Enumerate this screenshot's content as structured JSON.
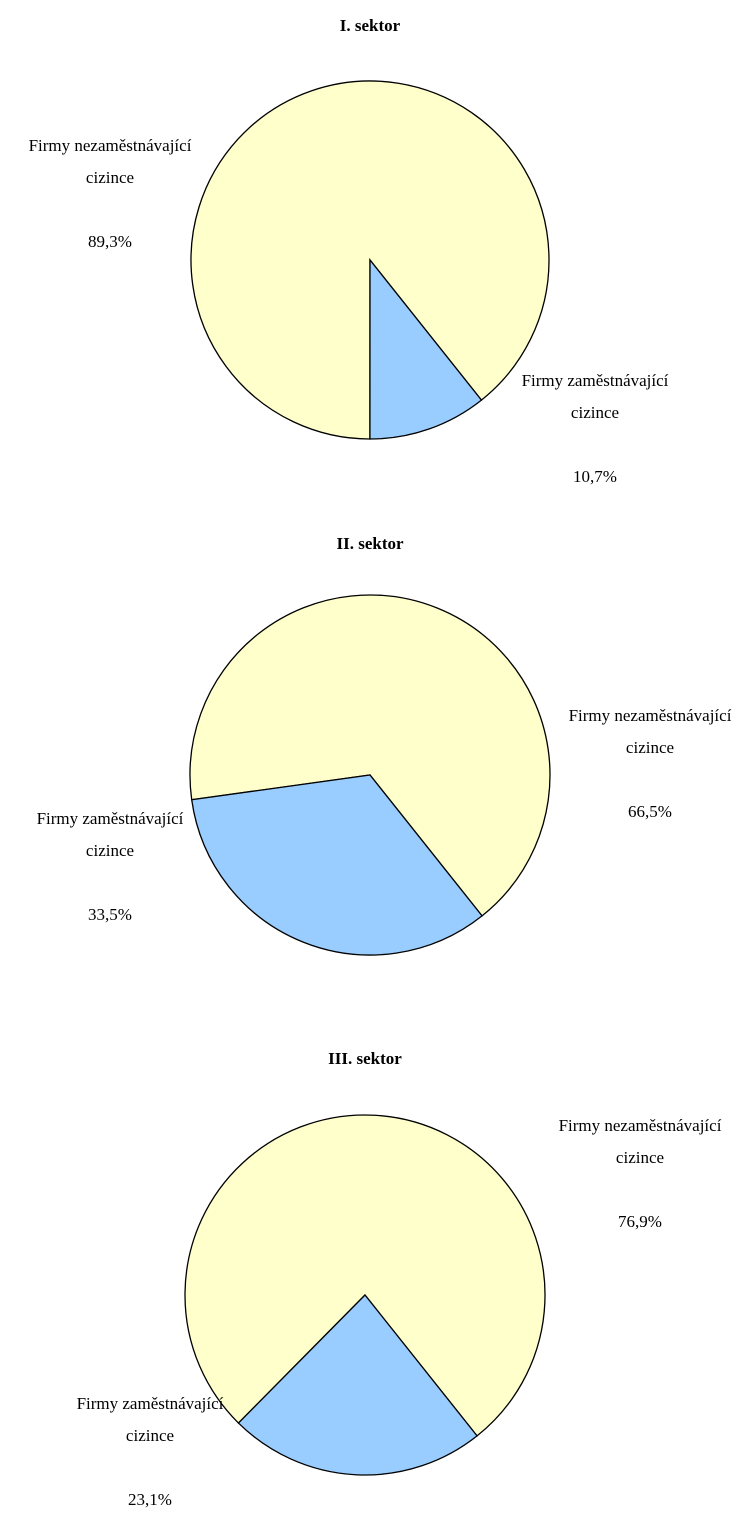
{
  "chart_data": [
    {
      "type": "pie",
      "title": "I. sektor",
      "categories": [
        "Firmy nezaměstnávající cizince",
        "Firmy zaměstnávající cizince"
      ],
      "values": [
        89.3,
        10.7
      ],
      "value_labels": [
        "89,3%",
        "10,7%"
      ],
      "colors": [
        "#ffffcc",
        "#99ccff"
      ]
    },
    {
      "type": "pie",
      "title": "II. sektor",
      "categories": [
        "Firmy nezaměstnávající cizince",
        "Firmy zaměstnávající cizince"
      ],
      "values": [
        66.5,
        33.5
      ],
      "value_labels": [
        "66,5%",
        "33,5%"
      ],
      "colors": [
        "#ffffcc",
        "#99ccff"
      ]
    },
    {
      "type": "pie",
      "title": "III. sektor",
      "categories": [
        "Firmy nezaměstnávající cizince",
        "Firmy zaměstnávající cizince"
      ],
      "values": [
        76.9,
        23.1
      ],
      "value_labels": [
        "76,9%",
        "23,1%"
      ],
      "colors": [
        "#ffffcc",
        "#99ccff"
      ]
    }
  ]
}
